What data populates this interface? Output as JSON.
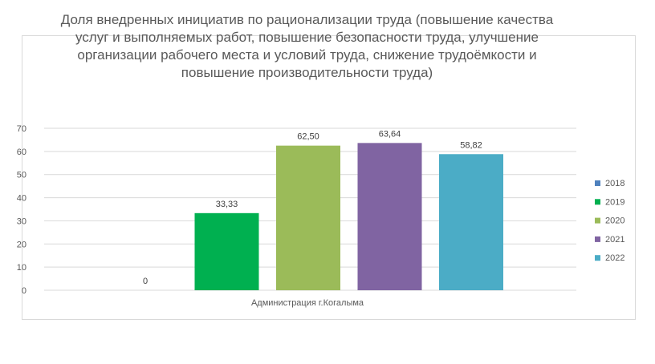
{
  "chart_data": {
    "type": "bar",
    "title": "Доля внедренных инициатив по рационализации труда (повышение качества услуг и выполняемых работ, повышение безопасности труда, улучшение организации рабочего места и условий труда, снижение трудоёмкости и повышение производительности труда)",
    "categories": [
      "Администрация г.Когалыма"
    ],
    "series": [
      {
        "name": "2018",
        "values": [
          0
        ],
        "label": "0",
        "color": "#4f81bd"
      },
      {
        "name": "2019",
        "values": [
          33.33
        ],
        "label": "33,33",
        "color": "#00b050"
      },
      {
        "name": "2020",
        "values": [
          62.5
        ],
        "label": "62,50",
        "color": "#9bbb59"
      },
      {
        "name": "2021",
        "values": [
          63.64
        ],
        "label": "63,64",
        "color": "#8064a2"
      },
      {
        "name": "2022",
        "values": [
          58.82
        ],
        "label": "58,82",
        "color": "#4bacc6"
      }
    ],
    "ylim": [
      0,
      70
    ],
    "yticks": [
      0,
      10,
      20,
      30,
      40,
      50,
      60,
      70
    ],
    "grid": true,
    "legend": "right"
  }
}
